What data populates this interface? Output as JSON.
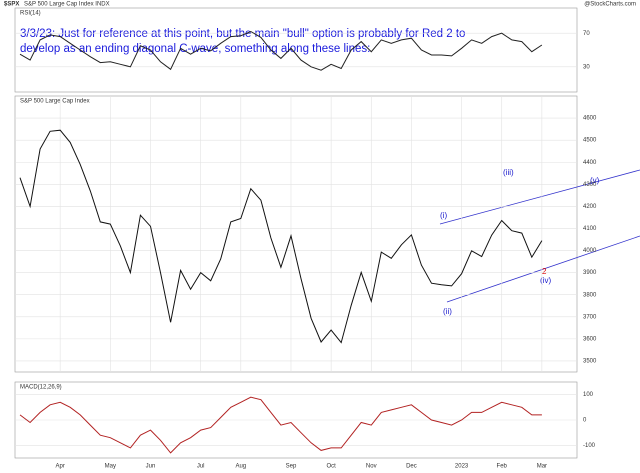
{
  "header": {
    "symbol": "$SPX",
    "name": "S&P 500 Large Cap Index INDX",
    "source": "@StockCharts.com"
  },
  "annotation": [
    "3/3/23:  Just for reference at this point, but the main \"bull\" option is probably for Red 2 to",
    "develop as an ending diagonal C-wave, something along these lines:"
  ],
  "wave_labels": [
    "(i)",
    "(ii)",
    "(iii)",
    "(iv)",
    "(v)",
    "2"
  ],
  "chart_data": [
    {
      "type": "line",
      "name": "RSI(14)",
      "color": "#222222",
      "values": [
        45,
        38,
        62,
        68,
        66,
        58,
        50,
        42,
        35,
        36,
        33,
        30,
        55,
        50,
        36,
        27,
        52,
        45,
        52,
        49,
        58,
        66,
        67,
        72,
        65,
        50,
        40,
        52,
        38,
        30,
        26,
        33,
        28,
        50,
        60,
        48,
        62,
        58,
        62,
        64,
        50,
        44,
        44,
        43,
        52,
        62,
        58,
        66,
        70,
        62,
        60,
        48,
        56
      ],
      "ylim": [
        0,
        100
      ],
      "yticks": [
        30,
        70
      ],
      "grid": true
    },
    {
      "type": "line",
      "name": "S&P 500 Large Cap Index",
      "color": "#111111",
      "categories": [
        null,
        null,
        null,
        null,
        "Apr",
        null,
        null,
        null,
        null,
        "May",
        null,
        null,
        null,
        "Jun",
        null,
        null,
        null,
        null,
        "Jul",
        null,
        null,
        null,
        "Aug",
        null,
        null,
        null,
        null,
        "Sep",
        null,
        null,
        null,
        "Oct",
        null,
        null,
        null,
        "Nov",
        null,
        null,
        null,
        "Dec",
        null,
        null,
        null,
        null,
        "2023",
        null,
        null,
        null,
        "Feb",
        null,
        null,
        null,
        "Mar"
      ],
      "values": [
        4330,
        4200,
        4460,
        4540,
        4545,
        4490,
        4390,
        4270,
        4130,
        4120,
        4020,
        3900,
        4160,
        4110,
        3900,
        3675,
        3910,
        3825,
        3900,
        3863,
        3962,
        4130,
        4145,
        4280,
        4228,
        4057,
        3924,
        4067,
        3873,
        3693,
        3586,
        3640,
        3583,
        3752,
        3901,
        3770,
        3993,
        3965,
        4026,
        4071,
        3934,
        3852,
        3845,
        3840,
        3895,
        3999,
        3973,
        4070,
        4136,
        4090,
        4079,
        3970,
        4045
      ],
      "ylim": [
        3450,
        4700
      ],
      "yticks": [
        3500,
        3600,
        3700,
        3800,
        3900,
        4000,
        4100,
        4200,
        4300,
        4400,
        4500,
        4600
      ],
      "grid": true
    },
    {
      "type": "line",
      "name": "MACD(12,26,9)",
      "color": "#b22222",
      "values": [
        20,
        -10,
        30,
        60,
        70,
        50,
        20,
        -20,
        -60,
        -70,
        -90,
        -110,
        -60,
        -40,
        -80,
        -130,
        -90,
        -70,
        -40,
        -30,
        10,
        50,
        70,
        90,
        80,
        30,
        -20,
        -10,
        -50,
        -90,
        -120,
        -110,
        -110,
        -60,
        -10,
        -20,
        30,
        40,
        50,
        60,
        30,
        0,
        -10,
        -20,
        0,
        30,
        30,
        50,
        70,
        60,
        50,
        20,
        20
      ],
      "ylim": [
        -150,
        150
      ],
      "yticks": [
        -100,
        0,
        100
      ],
      "grid": true
    }
  ]
}
